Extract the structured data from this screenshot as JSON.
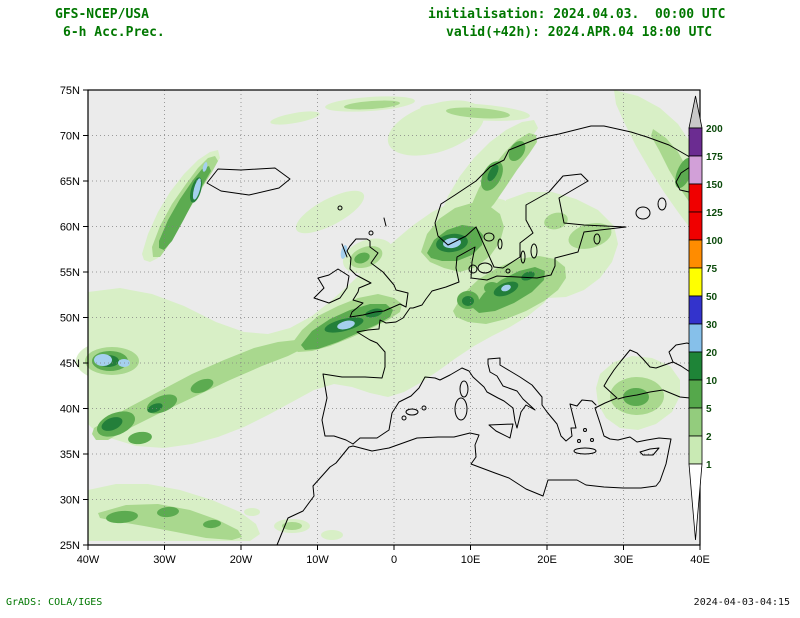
{
  "header": {
    "line1_left": "GFS-NCEP/USA",
    "line2_left": "6-h Acc.Prec.",
    "line1_right": "initialisation: 2024.04.03.  00:00 UTC",
    "line2_right": "valid(+42h): 2024.APR.04 18:00 UTC"
  },
  "footer": {
    "credit": "GrADS: COLA/IGES",
    "timestamp": "2024-04-03-04:15"
  },
  "map": {
    "lat_ticks": [
      "75N",
      "70N",
      "65N",
      "60N",
      "55N",
      "50N",
      "45N",
      "40N",
      "35N",
      "30N",
      "25N"
    ],
    "lon_ticks": [
      "40W",
      "30W",
      "20W",
      "10W",
      "0",
      "10E",
      "20E",
      "30E",
      "40E"
    ],
    "background": "#ebebeb",
    "coast_color": "#000000",
    "grid_color": "#808080"
  },
  "colorbar": {
    "labels": [
      "200",
      "175",
      "150",
      "125",
      "100",
      "75",
      "50",
      "30",
      "20",
      "10",
      "5",
      "2",
      "1"
    ],
    "segment_colors": [
      "#6b2c91",
      "#d2a0d8",
      "#f00000",
      "#f00000",
      "#ff8c00",
      "#ffff00",
      "#3333cc",
      "#86c0ea",
      "#1e8437",
      "#55a84b",
      "#93cc7d",
      "#c9eab4"
    ],
    "top_arrow_color": "#c8c8c8",
    "bottom_arrow_color": "#ffffff"
  },
  "precip_palette": {
    "pale_green_1mm": "#d8efc6",
    "light_green_2mm": "#a9d88e",
    "mid_green_5mm": "#5cab50",
    "dark_green_10mm": "#237f3a",
    "light_blue_20mm": "#a5d0ee"
  },
  "colors": {
    "header_text": "#007700",
    "credit_text": "#007700",
    "timestamp_text": "#111111",
    "cbar_label": "#0b4a0b"
  }
}
